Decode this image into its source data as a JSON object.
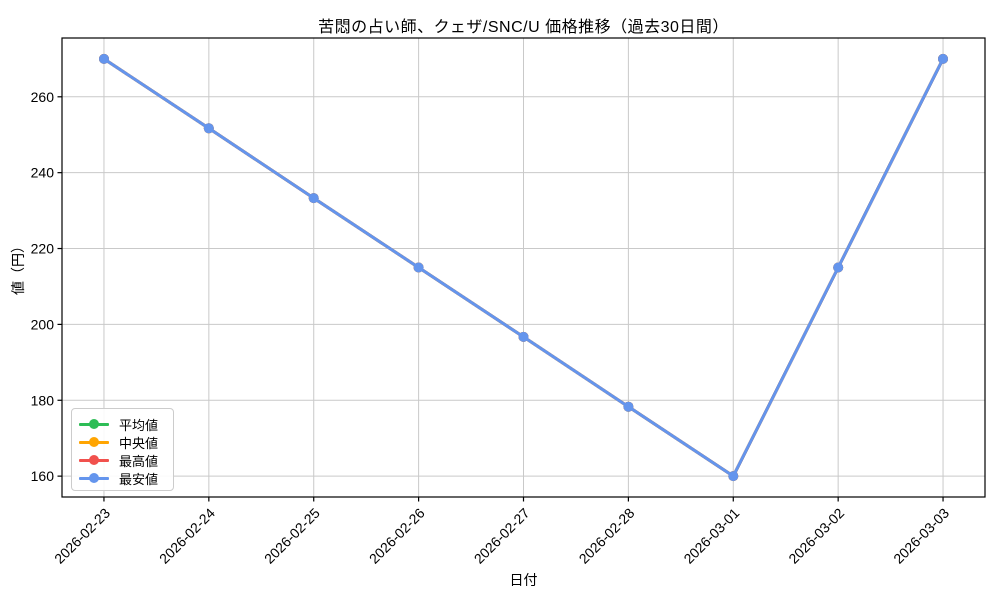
{
  "chart_data": {
    "type": "line",
    "title": "苦悶の占い師、クェザ/SNC/U 価格推移（過去30日間）",
    "xlabel": "日付",
    "ylabel": "値（円）",
    "categories": [
      "2026-02-23",
      "2026-02-24",
      "2026-02-25",
      "2026-02-26",
      "2026-02-27",
      "2026-02-28",
      "2026-03-01",
      "2026-03-02",
      "2026-03-03"
    ],
    "series": [
      {
        "name": "平均値",
        "color": "#2dbd56",
        "values": [
          270,
          251.7,
          233.3,
          215,
          196.7,
          178.3,
          160,
          215,
          270
        ]
      },
      {
        "name": "中央値",
        "color": "#ffa502",
        "values": [
          270,
          251.7,
          233.3,
          215,
          196.7,
          178.3,
          160,
          215,
          270
        ]
      },
      {
        "name": "最高値",
        "color": "#f1514d",
        "values": [
          270,
          251.7,
          233.3,
          215,
          196.7,
          178.3,
          160,
          215,
          270
        ]
      },
      {
        "name": "最安値",
        "color": "#6495ed",
        "values": [
          270,
          251.7,
          233.3,
          215,
          196.7,
          178.3,
          160,
          215,
          270
        ]
      }
    ],
    "yticks": [
      160,
      180,
      200,
      220,
      240,
      260
    ],
    "ylim": [
      154.5,
      275.5
    ],
    "xlim": [
      -0.4,
      8.4
    ],
    "grid": true,
    "grid_color": "#c9c9c9",
    "axis_color": "#000000",
    "background": "#ffffff",
    "legend_position": "lower left",
    "marker": "circle",
    "line_width": 3,
    "marker_radius": 5
  }
}
